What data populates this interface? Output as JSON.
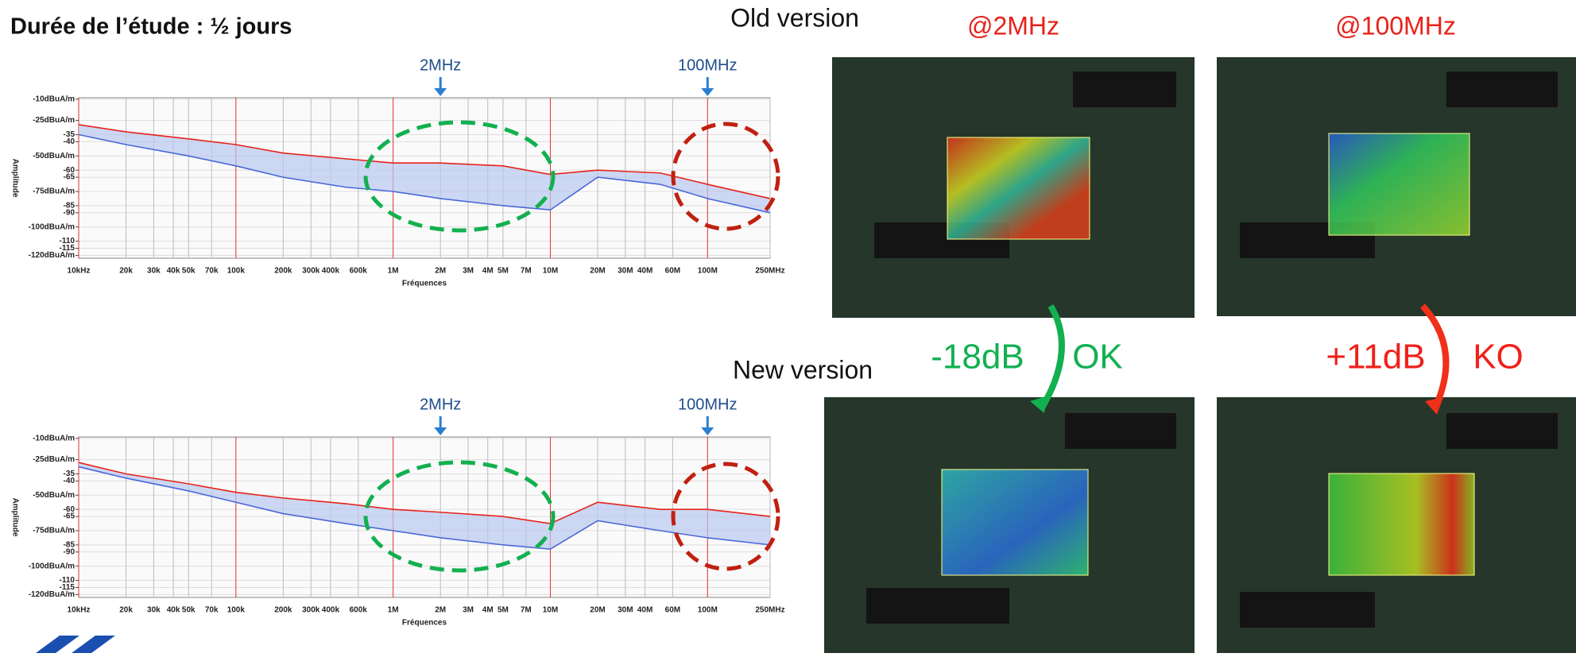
{
  "header": {
    "title": "Durée de l’étude : ½ jours"
  },
  "comparison": {
    "old_label": "Old version",
    "new_label": "New version",
    "freq_labels": [
      "@2MHz",
      "@100MHz"
    ],
    "deltas": [
      {
        "delta": "-18dB",
        "verdict": "OK"
      },
      {
        "delta": "+11dB",
        "verdict": "KO"
      }
    ]
  },
  "chart_data": [
    {
      "type": "line",
      "log_x": true,
      "x_label": "Fréquences",
      "y_label": "Amplitude",
      "xlim": [
        10000,
        250000000
      ],
      "ylim": [
        -122,
        -9
      ],
      "xticks": [
        {
          "value": 10000,
          "label": "10kHz"
        },
        {
          "value": 20000,
          "label": "20k"
        },
        {
          "value": 30000,
          "label": "30k"
        },
        {
          "value": 40000,
          "label": "40k"
        },
        {
          "value": 50000,
          "label": "50k"
        },
        {
          "value": 70000,
          "label": "70k"
        },
        {
          "value": 100000,
          "label": "100k"
        },
        {
          "value": 200000,
          "label": "200k"
        },
        {
          "value": 300000,
          "label": "300k"
        },
        {
          "value": 400000,
          "label": "400k"
        },
        {
          "value": 600000,
          "label": "600k"
        },
        {
          "value": 1000000,
          "label": "1M"
        },
        {
          "value": 2000000,
          "label": "2M"
        },
        {
          "value": 3000000,
          "label": "3M"
        },
        {
          "value": 4000000,
          "label": "4M"
        },
        {
          "value": 5000000,
          "label": "5M"
        },
        {
          "value": 7000000,
          "label": "7M"
        },
        {
          "value": 10000000,
          "label": "10M"
        },
        {
          "value": 20000000,
          "label": "20M"
        },
        {
          "value": 30000000,
          "label": "30M"
        },
        {
          "value": 40000000,
          "label": "40M"
        },
        {
          "value": 60000000,
          "label": "60M"
        },
        {
          "value": 100000000,
          "label": "100M"
        },
        {
          "value": 250000000,
          "label": "250MHz"
        }
      ],
      "yticks": [
        {
          "value": -10,
          "label": "-10dBuA/m"
        },
        {
          "value": -25,
          "label": "-25dBuA/m"
        },
        -35,
        -40,
        {
          "value": -50,
          "label": "-50dBuA/m"
        },
        -60,
        -65,
        {
          "value": -75,
          "label": "-75dBuA/m"
        },
        -85,
        -90,
        {
          "value": -100,
          "label": "-100dBuA/m"
        },
        -110,
        -115,
        {
          "value": -120,
          "label": "-120dBuA/m"
        }
      ],
      "annotations": [
        {
          "text": "2MHz",
          "x": 2000000
        },
        {
          "text": "100MHz",
          "x": 100000000
        }
      ],
      "x": [
        10000,
        20000,
        50000,
        100000,
        200000,
        500000,
        1000000,
        2000000,
        5000000,
        10000000,
        20000000,
        50000000,
        100000000,
        250000000
      ],
      "series": [
        {
          "color": "#e8221a",
          "values": [
            -28,
            -33,
            -38,
            -42,
            -48,
            -52,
            -55,
            -55,
            -57,
            -63,
            -60,
            -62,
            -70,
            -80
          ]
        },
        {
          "color": "#4a68d8",
          "values": [
            -35,
            -42,
            -50,
            -57,
            -65,
            -72,
            -75,
            -80,
            -85,
            -88,
            -65,
            -70,
            -80,
            -90
          ]
        }
      ]
    },
    {
      "type": "line",
      "log_x": true,
      "x_label": "Fréquences",
      "y_label": "Amplitude",
      "xlim": [
        10000,
        250000000
      ],
      "ylim": [
        -122,
        -9
      ],
      "xticks": [
        {
          "value": 10000,
          "label": "10kHz"
        },
        {
          "value": 20000,
          "label": "20k"
        },
        {
          "value": 30000,
          "label": "30k"
        },
        {
          "value": 40000,
          "label": "40k"
        },
        {
          "value": 50000,
          "label": "50k"
        },
        {
          "value": 70000,
          "label": "70k"
        },
        {
          "value": 100000,
          "label": "100k"
        },
        {
          "value": 200000,
          "label": "200k"
        },
        {
          "value": 300000,
          "label": "300k"
        },
        {
          "value": 400000,
          "label": "400k"
        },
        {
          "value": 600000,
          "label": "600k"
        },
        {
          "value": 1000000,
          "label": "1M"
        },
        {
          "value": 2000000,
          "label": "2M"
        },
        {
          "value": 3000000,
          "label": "3M"
        },
        {
          "value": 4000000,
          "label": "4M"
        },
        {
          "value": 5000000,
          "label": "5M"
        },
        {
          "value": 7000000,
          "label": "7M"
        },
        {
          "value": 10000000,
          "label": "10M"
        },
        {
          "value": 20000000,
          "label": "20M"
        },
        {
          "value": 30000000,
          "label": "30M"
        },
        {
          "value": 40000000,
          "label": "40M"
        },
        {
          "value": 60000000,
          "label": "60M"
        },
        {
          "value": 100000000,
          "label": "100M"
        },
        {
          "value": 250000000,
          "label": "250MHz"
        }
      ],
      "yticks": [
        {
          "value": -10,
          "label": "-10dBuA/m"
        },
        {
          "value": -25,
          "label": "-25dBuA/m"
        },
        -35,
        -40,
        {
          "value": -50,
          "label": "-50dBuA/m"
        },
        -60,
        -65,
        {
          "value": -75,
          "label": "-75dBuA/m"
        },
        -85,
        -90,
        {
          "value": -100,
          "label": "-100dBuA/m"
        },
        -110,
        -115,
        {
          "value": -120,
          "label": "-120dBuA/m"
        }
      ],
      "annotations": [
        {
          "text": "2MHz",
          "x": 2000000
        },
        {
          "text": "100MHz",
          "x": 100000000
        }
      ],
      "x": [
        10000,
        20000,
        50000,
        100000,
        200000,
        500000,
        1000000,
        2000000,
        5000000,
        10000000,
        20000000,
        50000000,
        100000000,
        250000000
      ],
      "series": [
        {
          "color": "#e8221a",
          "values": [
            -27,
            -35,
            -42,
            -48,
            -52,
            -56,
            -60,
            -62,
            -65,
            -70,
            -55,
            -60,
            -60,
            -65
          ]
        },
        {
          "color": "#4a68d8",
          "values": [
            -30,
            -38,
            -47,
            -55,
            -63,
            -70,
            -75,
            -80,
            -85,
            -88,
            -68,
            -75,
            -80,
            -85
          ]
        }
      ]
    }
  ]
}
